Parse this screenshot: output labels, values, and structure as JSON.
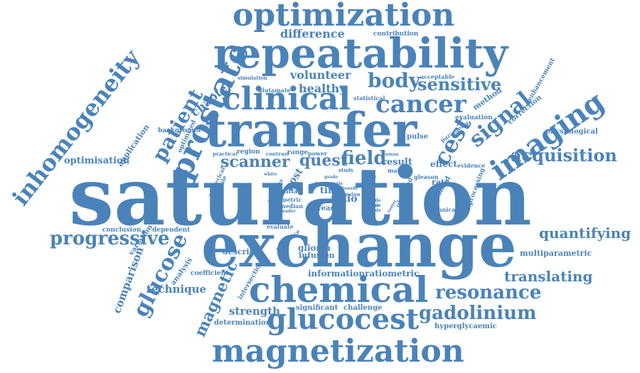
{
  "colors": {
    "word": "#4A83B9",
    "background": "#FFFFFF"
  },
  "words": [
    "saturation",
    "exchange",
    "transfer",
    "repeatability",
    "chemical",
    "optimization",
    "magnetization",
    "prostate",
    "glucocest",
    "imaging",
    "clinical",
    "inhomogeneity",
    "cancer",
    "signal",
    "acquisition",
    "resonance",
    "gadolinium",
    "progressive",
    "glucose",
    "body",
    "sensitive",
    "quantifying",
    "translating",
    "patient",
    "scanner",
    "quest",
    "field",
    "cest",
    "magnetic",
    "difference",
    "volunteer",
    "healthy",
    "chapter",
    "strength",
    "technique",
    "comparison",
    "contribution",
    "application",
    "ratio",
    "time",
    "optimisation",
    "post",
    "result",
    "rate",
    "effect",
    "information",
    "ratiometric",
    "significant",
    "challenge",
    "determination",
    "hyperglycaemic",
    "multiparametric",
    "physiological",
    "correction",
    "method",
    "evaluation",
    "enhancement",
    "acceptable",
    "statistical",
    "pulse",
    "parameter",
    "processing",
    "technical",
    "avoided",
    "observed",
    "gleason",
    "matter",
    "evidence",
    "human",
    "study",
    "lesion",
    "median",
    "metric",
    "initial",
    "year",
    "reader",
    "whereas",
    "detectable",
    "numerical",
    "white",
    "type",
    "grade",
    "tesla",
    "mode",
    "amide",
    "include",
    "tumor",
    "proton",
    "glioma",
    "infusion",
    "sequence",
    "intersection",
    "evaluate",
    "analysis",
    "coefficient",
    "variation",
    "describe",
    "dependent",
    "conclusion",
    "background",
    "optimized",
    "practical",
    "region",
    "contrast",
    "range",
    "power",
    "glutamate",
    "simulation",
    "benefit",
    "model"
  ]
}
